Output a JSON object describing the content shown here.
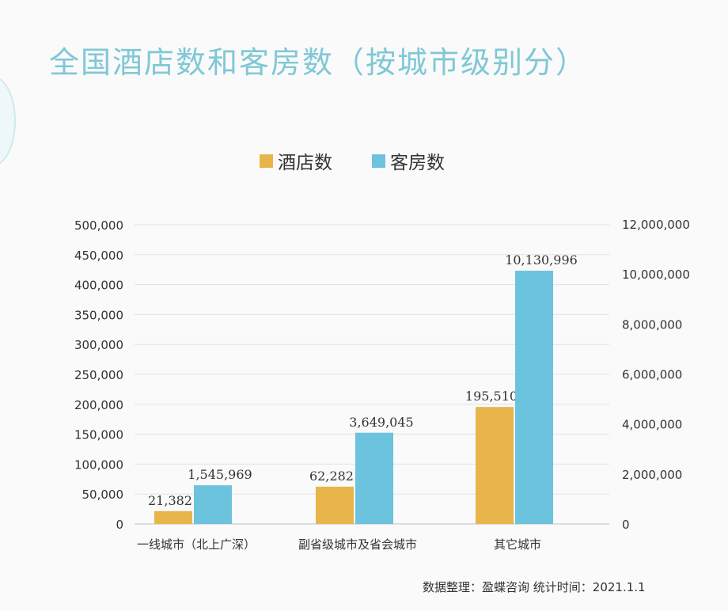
{
  "chart_data": {
    "type": "bar",
    "title": "全国酒店数和客房数（按城市级别分）",
    "categories": [
      "一线城市（北上广深）",
      "副省级城市及省会城市",
      "其它城市"
    ],
    "series": [
      {
        "name": "酒店数",
        "values": [
          21382,
          62282,
          195510
        ],
        "axis": "left",
        "color": "#e7b54a",
        "labels": [
          "21,382",
          "62,282",
          "195,510"
        ]
      },
      {
        "name": "客房数",
        "values": [
          1545969,
          3649045,
          10130996
        ],
        "axis": "right",
        "color": "#6cc3de",
        "labels": [
          "1,545,969",
          "3,649,045",
          "10,130,996"
        ]
      }
    ],
    "y_left": {
      "min": 0,
      "max": 500000,
      "step": 50000,
      "ticks": [
        "0",
        "50,000",
        "100,000",
        "150,000",
        "200,000",
        "250,000",
        "300,000",
        "350,000",
        "400,000",
        "450,000",
        "500,000"
      ]
    },
    "y_right": {
      "min": 0,
      "max": 12000000,
      "step": 2000000,
      "ticks": [
        "0",
        "2,000,000",
        "4,000,000",
        "6,000,000",
        "8,000,000",
        "10,000,000",
        "12,000,000"
      ]
    },
    "grid": true,
    "legend_position": "top-center"
  },
  "source_note": "数据整理：盈蝶咨询  统计时间：2021.1.1",
  "colors": {
    "title": "#7fc8d6",
    "gold": "#e7b54a",
    "blue": "#6cc3de",
    "grid": "#dddddd"
  }
}
